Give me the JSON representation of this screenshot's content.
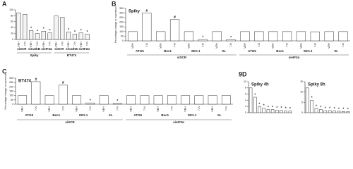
{
  "chart_data": [
    {
      "type": "bar",
      "panel": "A",
      "title": null,
      "categories": [
        "VEH",
        "7-N",
        "VEH",
        "7-N",
        "VEH",
        "7-N",
        "VEH",
        "7-N",
        "VEH",
        "7-N",
        "VEH",
        "7-N"
      ],
      "values": [
        90,
        85,
        30,
        20,
        28,
        22,
        80,
        75,
        25,
        18,
        22,
        18
      ],
      "markers": [
        null,
        null,
        "*",
        "*",
        "*",
        "*",
        null,
        null,
        "*",
        "*",
        "*",
        "*"
      ],
      "subgroups": [
        "siSCR",
        "siCathB",
        "sieIF2α",
        "siSCR",
        "siCathB",
        "sieIF2α"
      ],
      "groups": [
        "Spiky",
        "BT474"
      ],
      "ylim": [
        0,
        100
      ],
      "yticks": [
        0,
        20,
        40,
        60,
        80,
        100
      ],
      "color": "#f4f4f4"
    },
    {
      "type": "bar",
      "panel": "B",
      "title": "Spiky",
      "ylabel": "Percentage change in expression",
      "categories": [
        "VEH",
        "7-N",
        "VEH",
        "7-N",
        "VEH",
        "7-N",
        "VEH",
        "7-N",
        "VEH",
        "7-N",
        "VEH",
        "7-N",
        "VEH",
        "7-N",
        "VEH",
        "7-N"
      ],
      "values": [
        100,
        300,
        100,
        230,
        100,
        15,
        100,
        12,
        100,
        100,
        100,
        100,
        100,
        98,
        100,
        100
      ],
      "markers": [
        null,
        "#",
        null,
        "#",
        null,
        "*",
        null,
        "*",
        null,
        null,
        null,
        null,
        null,
        null,
        null,
        null
      ],
      "subgroups": [
        "ATG5",
        "Bec1",
        "MCL1",
        "XL",
        "ATG5",
        "Bec1",
        "MCL1",
        "XL"
      ],
      "groups": [
        "siSCR",
        "sieIF2α"
      ],
      "ylim": [
        0,
        350
      ],
      "yticks": [
        0,
        50,
        100,
        150,
        200,
        250,
        300,
        350
      ],
      "color": "#ffffff"
    },
    {
      "type": "bar",
      "panel": "C",
      "title": "BT474",
      "ylabel": "Percentage change in expression",
      "categories": [
        "VEH",
        "7-N",
        "VEH",
        "7-N",
        "VEH",
        "7-N",
        "VEH",
        "7-N",
        "VEH",
        "7-N",
        "VEH",
        "7-N",
        "VEH",
        "7-N",
        "VEH",
        "7-N"
      ],
      "values": [
        100,
        260,
        100,
        220,
        100,
        15,
        100,
        10,
        100,
        100,
        100,
        100,
        100,
        100,
        100,
        100
      ],
      "markers": [
        null,
        "#",
        null,
        "#",
        null,
        "*",
        null,
        "*",
        null,
        null,
        null,
        null,
        null,
        null,
        null,
        null
      ],
      "subgroups": [
        "ATG5",
        "Bec1",
        "MCL1",
        "XL",
        "ATG5",
        "Bec1",
        "MCL1",
        "XL"
      ],
      "groups": [
        "siSCR",
        "sieIF2α"
      ],
      "ylim": [
        0,
        300
      ],
      "yticks": [
        0,
        50,
        100,
        150,
        200,
        250,
        300
      ],
      "color": "#ffffff"
    },
    {
      "type": "bar",
      "panel": "9D",
      "title": "Spiky 4h",
      "categories": [
        null,
        null,
        null,
        null,
        null,
        null,
        null,
        null,
        null,
        null
      ],
      "values": [
        8,
        5,
        2,
        1.5,
        1,
        1,
        0.8,
        0.7,
        0.6,
        0.5
      ],
      "markers": [
        null,
        "*",
        "*",
        "*",
        "*",
        "*",
        "*",
        "*",
        "*",
        "*"
      ],
      "ylim": [
        0,
        10
      ],
      "yticks": [
        0,
        2,
        4,
        6,
        8,
        10
      ],
      "color": "#ffffff"
    },
    {
      "type": "bar",
      "panel": null,
      "title": "Spiky 8h",
      "categories": [
        null,
        null,
        null,
        null,
        null,
        null,
        null,
        null,
        null,
        null
      ],
      "values": [
        12,
        6,
        2,
        1.5,
        1,
        1,
        0.8,
        0.7,
        0.6,
        0.5
      ],
      "markers": [
        null,
        "*",
        "*",
        "*",
        "*",
        "*",
        "*",
        "*",
        "*",
        "*"
      ],
      "ylim": [
        0,
        15
      ],
      "yticks": [
        0,
        5,
        10,
        15
      ],
      "color": "#ffffff"
    }
  ]
}
